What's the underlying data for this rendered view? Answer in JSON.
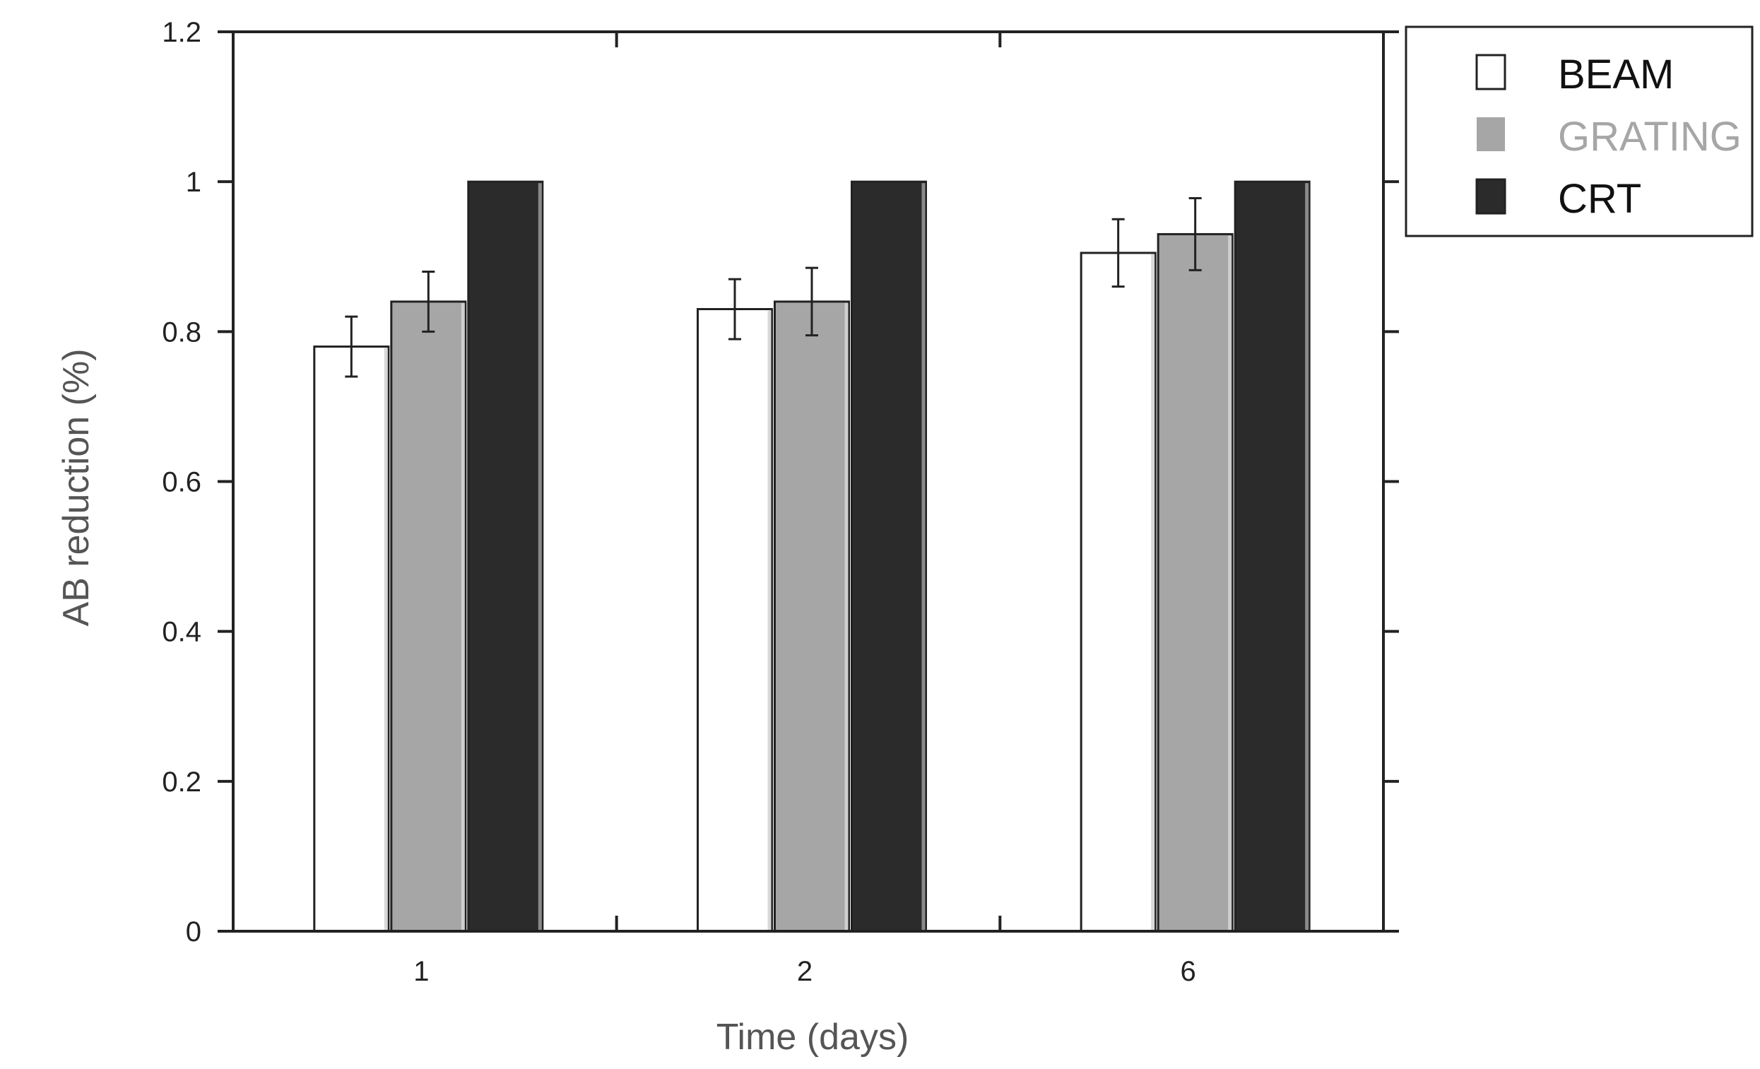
{
  "chart_data": {
    "type": "bar",
    "xlabel": "Time (days)",
    "ylabel": "AB reduction (%)",
    "categories": [
      "1",
      "2",
      "6"
    ],
    "ylim": [
      0,
      1.2
    ],
    "yticks": [
      0,
      0.2,
      0.4,
      0.6,
      0.8,
      1,
      1.2
    ],
    "ytick_labels": [
      "0",
      "0.2",
      "0.4",
      "0.6",
      "0.8",
      "1",
      "1.2"
    ],
    "grid": false,
    "legend_position": "outside-top-right",
    "series": [
      {
        "name": "BEAM",
        "values": [
          0.78,
          0.83,
          0.905
        ],
        "errors": [
          0.04,
          0.04,
          0.045
        ],
        "color": "#ffffff",
        "text_color": "#111111"
      },
      {
        "name": "GRATING",
        "values": [
          0.84,
          0.84,
          0.93
        ],
        "errors": [
          0.04,
          0.045,
          0.048
        ],
        "color": "#a6a6a6",
        "text_color": "#a6a6a6"
      },
      {
        "name": "CRT",
        "values": [
          1.0,
          1.0,
          1.0
        ],
        "errors": [
          0,
          0,
          0
        ],
        "color": "#2b2b2b",
        "text_color": "#111111"
      }
    ]
  }
}
